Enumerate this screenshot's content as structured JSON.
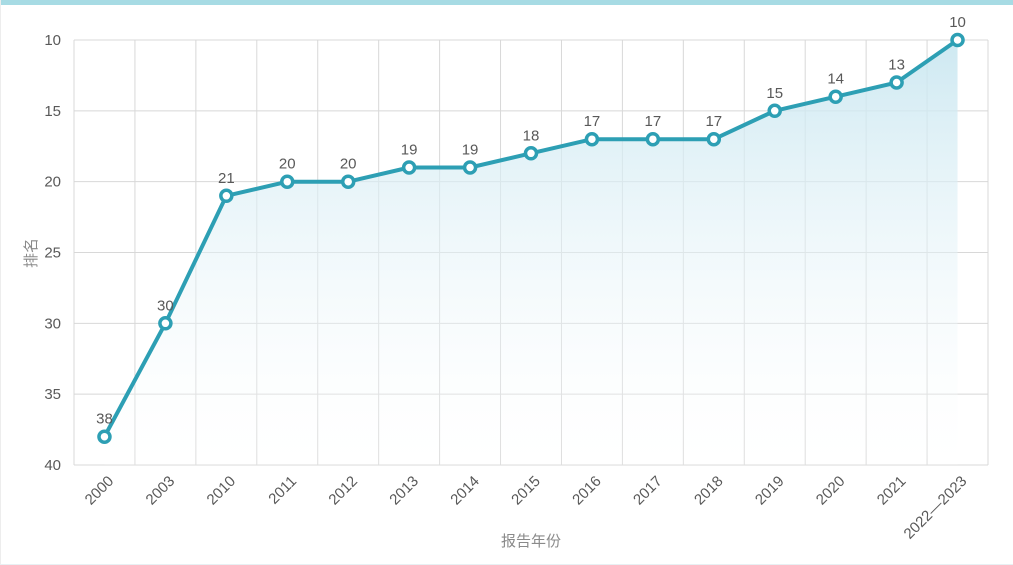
{
  "chart_data": {
    "type": "line",
    "categories": [
      "2000",
      "2003",
      "2010",
      "2011",
      "2012",
      "2013",
      "2014",
      "2015",
      "2016",
      "2017",
      "2018",
      "2019",
      "2020",
      "2021",
      "2022—2023"
    ],
    "values": [
      38,
      30,
      21,
      20,
      20,
      19,
      19,
      18,
      17,
      17,
      17,
      15,
      14,
      13,
      10
    ],
    "title": "",
    "xlabel": "报告年份",
    "ylabel": "排名",
    "y_axis": {
      "min": 10,
      "max": 40,
      "ticks": [
        10,
        15,
        20,
        25,
        30,
        35,
        40
      ],
      "inverted": true
    },
    "grid": true,
    "legend": "none",
    "colors": {
      "line": "#2d9fb4",
      "marker_fill": "#ffffff",
      "marker_stroke": "#2d9fb4",
      "area_top": "#c8e6f0",
      "area_bottom": "#ffffff",
      "grid_line": "#d8d8d8",
      "tick_label": "#595959",
      "data_label": "#595959",
      "axis_title": "#8a8a8a",
      "accent_bar": "#a7dbe4"
    }
  }
}
